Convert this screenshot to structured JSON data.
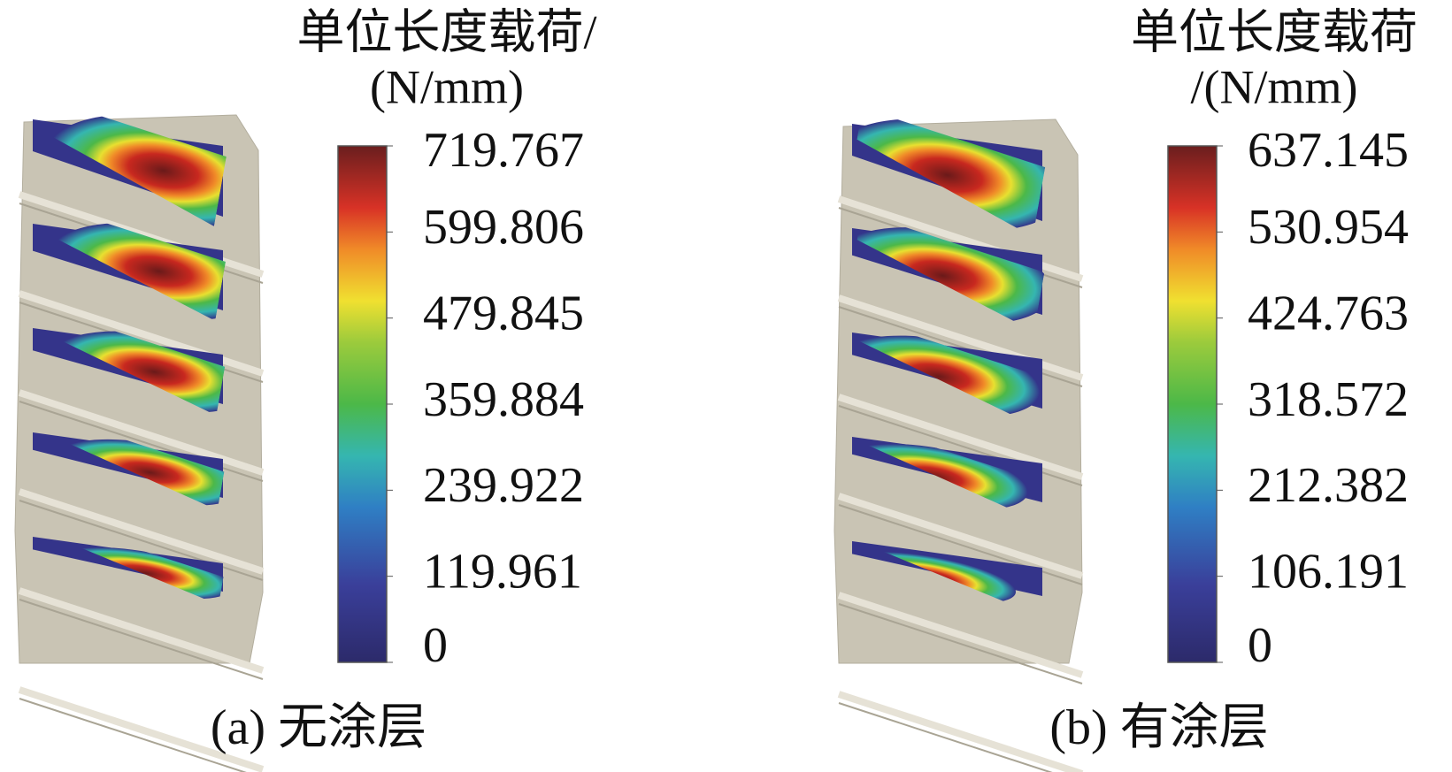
{
  "panels": [
    {
      "title_lines": [
        "单位长度载荷/",
        "(N/mm)"
      ],
      "colorbar": {
        "lim": [
          0,
          719.767
        ],
        "ticks": [
          0,
          119.961,
          239.922,
          359.884,
          479.845,
          599.806,
          719.767
        ]
      },
      "caption": "(a)  无涂层"
    },
    {
      "title_lines": [
        "单位长度载荷",
        "/(N/mm)"
      ],
      "colorbar": {
        "lim": [
          0,
          637.145
        ],
        "ticks": [
          0,
          106.191,
          212.382,
          318.572,
          424.763,
          530.954,
          637.145
        ]
      },
      "caption": "(b)  有涂层"
    }
  ]
}
